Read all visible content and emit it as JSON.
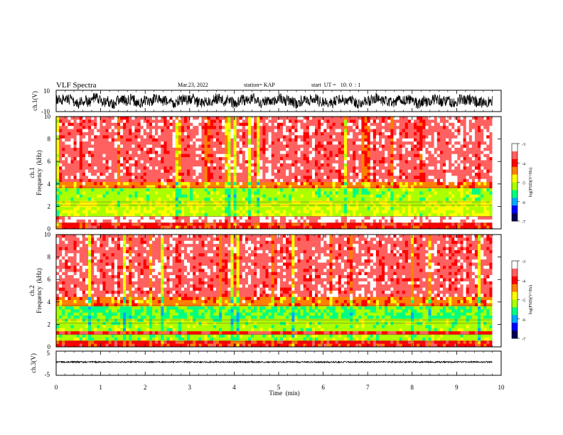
{
  "header": {
    "title": "VLF Spectra",
    "date": "Mar.23, 2022",
    "station": "station= KAP",
    "start": "start  UT =   10: 0  : 1"
  },
  "colors": {
    "cmap": [
      "#000055",
      "#0000ff",
      "#00aaff",
      "#00ff80",
      "#aaff00",
      "#ffff00",
      "#ff8000",
      "#ff0000",
      "#ff6060",
      "#ffffff"
    ],
    "trace": "#000000",
    "axis": "#000000"
  },
  "colorbar": {
    "label": "log(PSD)(V²/Hz)",
    "ticks": [
      "-3",
      "-4",
      "-5",
      "-6",
      "-7"
    ]
  },
  "chart_data": [
    {
      "type": "line",
      "panel": "ch1-waveform",
      "ylabel": "ch.1(V)",
      "ylim": [
        -10,
        10
      ],
      "y_tick_labels": [
        "10",
        "-10"
      ],
      "xlim": [
        0,
        10
      ],
      "x_end": 9.8,
      "description_values": {
        "mean_voltage": 0,
        "amplitude_range": [
          -7,
          7
        ]
      }
    },
    {
      "type": "heatmap",
      "panel": "ch1-spectrogram",
      "ylabel": "ch.1\nFrequency (kHz)",
      "ylabel_lines": [
        "ch.1",
        "Frequency  (kHz)"
      ],
      "y_tick_labels": [
        "10",
        "8",
        "6",
        "4",
        "2",
        "0"
      ],
      "ylim": [
        0,
        10
      ],
      "xlim": [
        0,
        10
      ],
      "x_end": 9.8,
      "zlim": [
        -7,
        -3
      ],
      "frequency_bands": [
        {
          "from": 0,
          "to": 0.6,
          "log_psd": -4.0
        },
        {
          "from": 0.6,
          "to": 1.0,
          "log_psd": -3.3
        },
        {
          "from": 1.0,
          "to": 2.5,
          "log_psd": -5.0
        },
        {
          "from": 2.5,
          "to": 3.5,
          "log_psd": -5.2
        },
        {
          "from": 3.5,
          "to": 4.2,
          "log_psd": -4.4
        },
        {
          "from": 4.2,
          "to": 10,
          "log_psd": -3.6
        }
      ]
    },
    {
      "type": "heatmap",
      "panel": "ch2-spectrogram",
      "ylabel": "ch.2\nFrequency (kHz)",
      "ylabel_lines": [
        "ch.2",
        "Frequency  (kHz)"
      ],
      "y_tick_labels": [
        "10",
        "8",
        "6",
        "4",
        "2",
        "0"
      ],
      "ylim": [
        0,
        10
      ],
      "xlim": [
        0,
        10
      ],
      "x_end": 9.8,
      "zlim": [
        -7,
        -3
      ],
      "frequency_bands": [
        {
          "from": 0,
          "to": 0.6,
          "log_psd": -4.0
        },
        {
          "from": 0.6,
          "to": 1.0,
          "log_psd": -5.2
        },
        {
          "from": 1.0,
          "to": 1.5,
          "log_psd": -3.8
        },
        {
          "from": 1.5,
          "to": 2.5,
          "log_psd": -5.2
        },
        {
          "from": 2.5,
          "to": 3.5,
          "log_psd": -5.4
        },
        {
          "from": 3.5,
          "to": 4.5,
          "log_psd": -4.4
        },
        {
          "from": 4.5,
          "to": 10,
          "log_psd": -3.6
        }
      ]
    },
    {
      "type": "line",
      "panel": "ch3-waveform",
      "ylabel": "ch.3(V)",
      "ylim": [
        -5,
        5
      ],
      "y_tick_labels": [
        "5",
        "-5"
      ],
      "xlim": [
        0,
        10
      ],
      "x_end": 9.8,
      "description_values": {
        "mean_voltage": 0.5,
        "amplitude_range": [
          0.2,
          0.8
        ]
      }
    }
  ],
  "xaxis": {
    "label": "Time  (min)",
    "tick_labels": [
      "0",
      "1",
      "2",
      "3",
      "4",
      "5",
      "6",
      "7",
      "8",
      "9",
      "10"
    ]
  }
}
